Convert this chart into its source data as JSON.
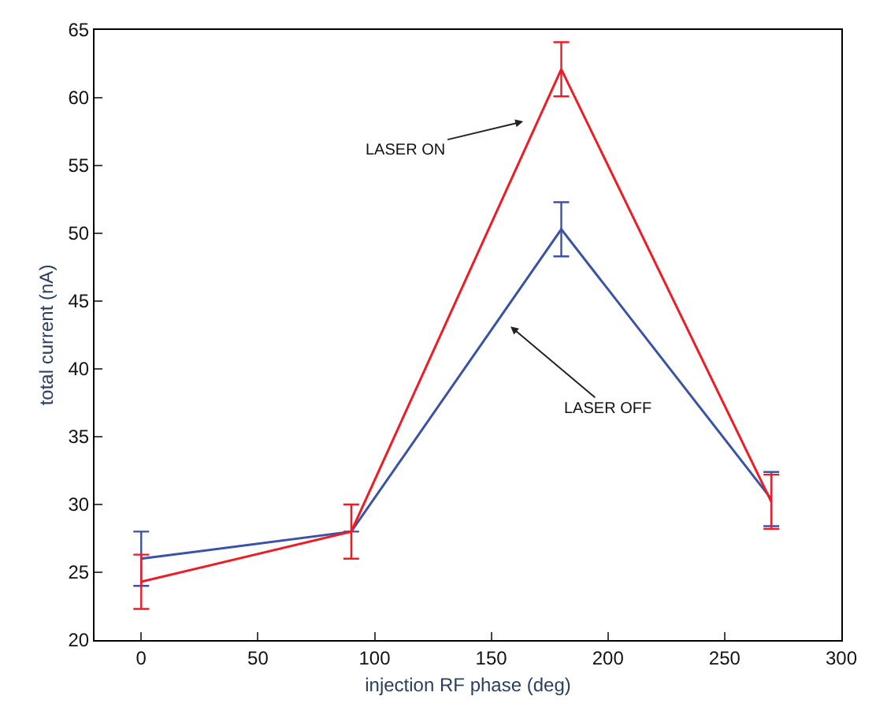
{
  "chart_data": {
    "type": "line",
    "xlabel": "injection RF phase (deg)",
    "ylabel": "total current (nA)",
    "x": [
      0,
      90,
      180,
      270
    ],
    "series": [
      {
        "color": "#3a53a4",
        "values": [
          26,
          28,
          50.3,
          30.4
        ],
        "errors": [
          2,
          null,
          2,
          2
        ]
      },
      {
        "color": "#ee1c25",
        "values": [
          24.3,
          28,
          62.1,
          30.2
        ],
        "errors": [
          2,
          2,
          2,
          2
        ]
      }
    ],
    "annotations": [
      "LASER ON",
      "LASER OFF"
    ],
    "xlim": [
      -20,
      300
    ],
    "xticks": [
      0,
      50,
      100,
      150,
      200,
      250,
      300
    ],
    "ylim": [
      20,
      65
    ],
    "yticks": [
      20,
      25,
      30,
      35,
      40,
      45,
      50,
      55,
      60,
      65
    ],
    "marker": "none",
    "line_style": "solid"
  }
}
